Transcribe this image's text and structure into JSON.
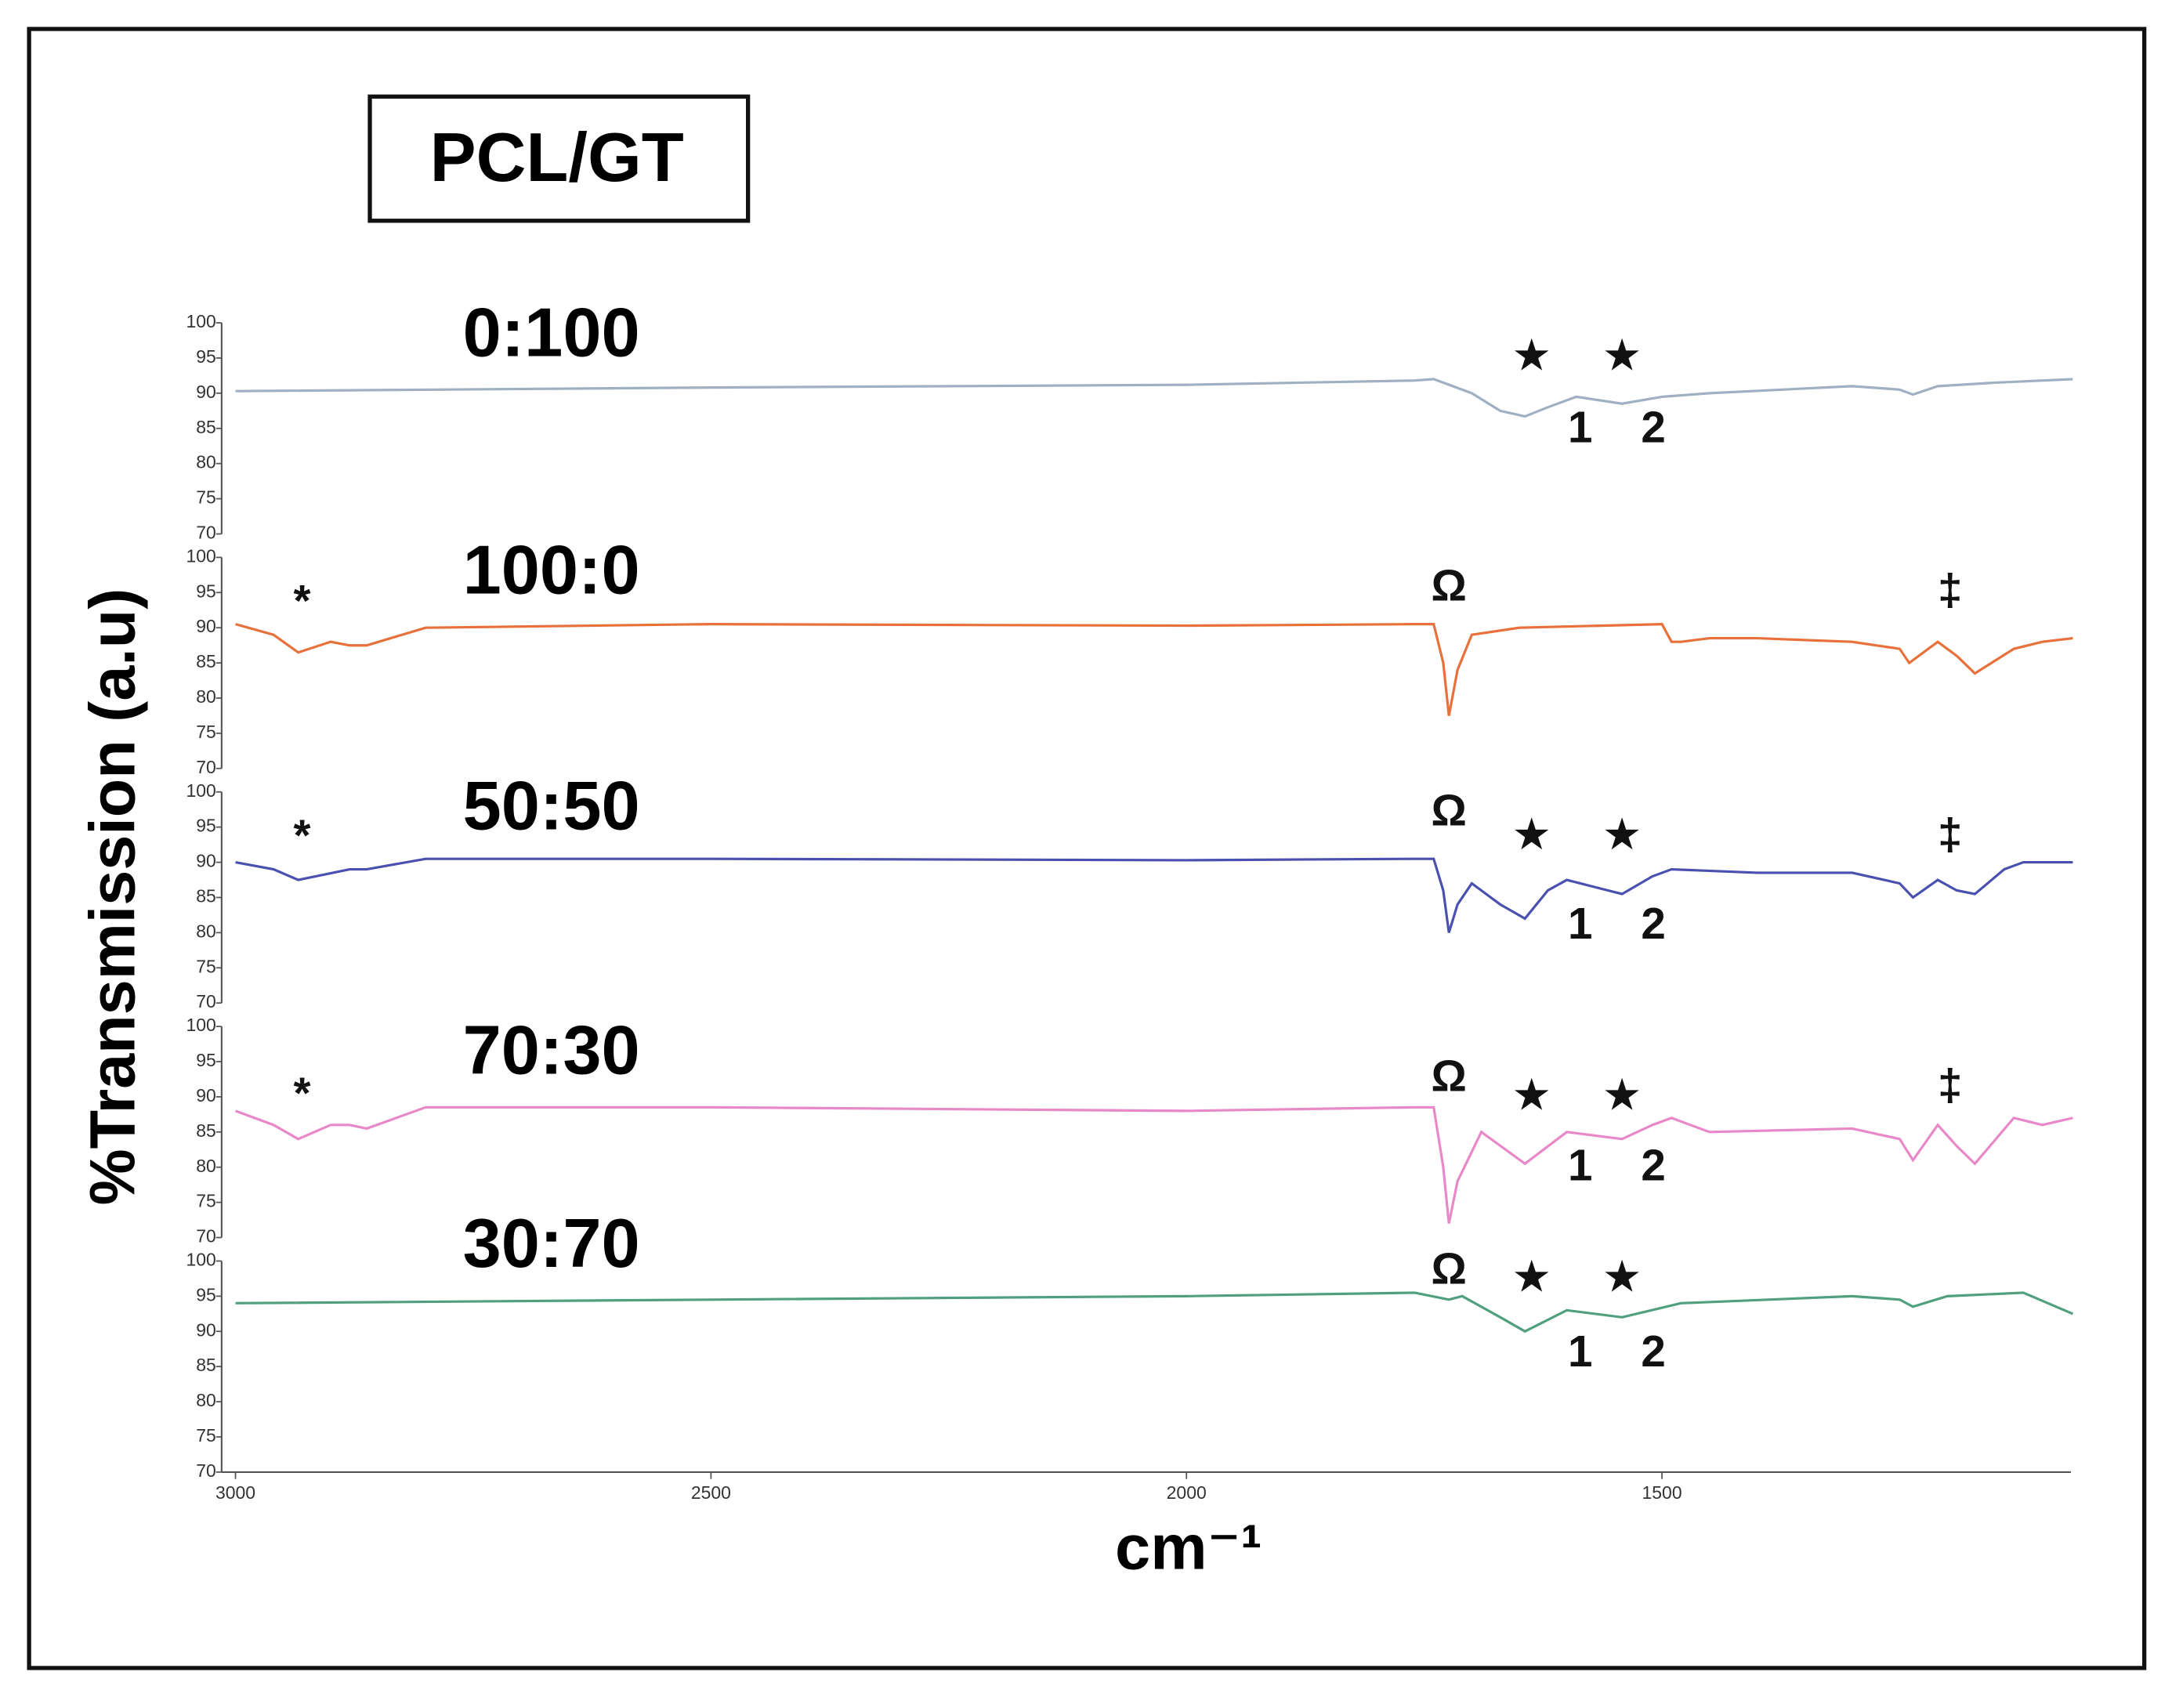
{
  "figure": {
    "title": "PCL/GT",
    "ylabel": "%Transmission (a.u)",
    "xlabel": "cm⁻¹"
  },
  "chart_data": [
    {
      "type": "line",
      "title": "0:100",
      "color": "#9fb0c2",
      "x": [
        3000,
        2500,
        2000,
        1760,
        1740,
        1700,
        1670,
        1644,
        1620,
        1590,
        1542,
        1500,
        1450,
        1300,
        1250,
        1236,
        1210,
        1150,
        1068
      ],
      "values": [
        90.3,
        90.8,
        91.2,
        91.8,
        92,
        90,
        87.5,
        86.7,
        88,
        89.5,
        88.5,
        89.5,
        90,
        91,
        90.5,
        89.8,
        91,
        91.5,
        92
      ],
      "xlim": [
        3000,
        1070
      ],
      "ylim": [
        70,
        100
      ],
      "yticks": [
        70,
        75,
        80,
        85,
        90,
        95,
        100
      ],
      "annotations": [
        {
          "text": "★",
          "x": 1637,
          "y": 94.9
        },
        {
          "text": "★",
          "x": 1542,
          "y": 94.9
        },
        {
          "text": "1",
          "x": 1586,
          "y": 84.7
        },
        {
          "text": "2",
          "x": 1509,
          "y": 84.7
        }
      ]
    },
    {
      "type": "line",
      "title": "100:0",
      "color": "#e8703a",
      "x": [
        3000,
        2960,
        2934,
        2900,
        2880,
        2862,
        2800,
        2500,
        2000,
        1760,
        1740,
        1730,
        1724,
        1715,
        1700,
        1650,
        1500,
        1490,
        1480,
        1450,
        1400,
        1300,
        1250,
        1240,
        1210,
        1190,
        1171,
        1130,
        1100,
        1068
      ],
      "values": [
        90.5,
        89,
        86.5,
        88,
        87.5,
        87.5,
        90,
        90.5,
        90.3,
        90.5,
        90.5,
        85,
        77.5,
        84,
        89,
        90,
        90.5,
        88,
        88,
        88.5,
        88.5,
        88,
        87,
        85,
        88,
        86,
        83.5,
        87,
        88,
        88.5
      ],
      "xlim": [
        3000,
        1070
      ],
      "ylim": [
        70,
        100
      ],
      "yticks": [
        70,
        75,
        80,
        85,
        90,
        95,
        100
      ],
      "annotations": [
        {
          "text": "*",
          "x": 2930,
          "y": 94.9
        },
        {
          "text": "Ω",
          "x": 1724,
          "y": 95.5
        },
        {
          "text": "‡",
          "x": 1197,
          "y": 94.9
        }
      ]
    },
    {
      "type": "line",
      "title": "50:50",
      "color": "#4a50b0",
      "x": [
        3000,
        2960,
        2934,
        2880,
        2862,
        2800,
        2500,
        2000,
        1760,
        1740,
        1730,
        1724,
        1715,
        1700,
        1670,
        1644,
        1620,
        1600,
        1542,
        1510,
        1490,
        1400,
        1300,
        1250,
        1236,
        1210,
        1190,
        1171,
        1140,
        1120,
        1068
      ],
      "values": [
        90,
        89,
        87.5,
        89,
        89,
        90.5,
        90.5,
        90.3,
        90.5,
        90.5,
        86,
        80,
        84,
        87,
        84,
        82,
        86,
        87.5,
        85.5,
        88,
        89,
        88.5,
        88.5,
        87,
        85,
        87.5,
        86,
        85.5,
        89,
        90,
        90
      ],
      "xlim": [
        3000,
        1070
      ],
      "ylim": [
        70,
        100
      ],
      "yticks": [
        70,
        75,
        80,
        85,
        90,
        95,
        100
      ],
      "annotations": [
        {
          "text": "*",
          "x": 2930,
          "y": 94.9
        },
        {
          "text": "Ω",
          "x": 1724,
          "y": 96.9
        },
        {
          "text": "★",
          "x": 1637,
          "y": 93.5
        },
        {
          "text": "★",
          "x": 1542,
          "y": 93.5
        },
        {
          "text": "‡",
          "x": 1197,
          "y": 93.5
        },
        {
          "text": "1",
          "x": 1586,
          "y": 80.8
        },
        {
          "text": "2",
          "x": 1509,
          "y": 80.8
        }
      ]
    },
    {
      "type": "line",
      "title": "70:30",
      "color": "#e888c8",
      "x": [
        3000,
        2960,
        2934,
        2900,
        2880,
        2862,
        2800,
        2500,
        2000,
        1760,
        1740,
        1730,
        1724,
        1715,
        1690,
        1644,
        1600,
        1542,
        1510,
        1490,
        1450,
        1300,
        1250,
        1236,
        1210,
        1190,
        1171,
        1130,
        1100,
        1068
      ],
      "values": [
        88,
        86,
        84,
        86,
        86,
        85.5,
        88.5,
        88.5,
        88,
        88.5,
        88.5,
        80,
        72,
        78,
        85,
        80.5,
        85,
        84,
        86,
        87,
        85,
        85.5,
        84,
        81,
        86,
        83,
        80.5,
        87,
        86,
        87
      ],
      "xlim": [
        3000,
        1070
      ],
      "ylim": [
        70,
        100
      ],
      "yticks": [
        70,
        75,
        80,
        85,
        90,
        95,
        100
      ],
      "annotations": [
        {
          "text": "*",
          "x": 2930,
          "y": 91.6
        },
        {
          "text": "Ω",
          "x": 1724,
          "y": 92.5
        },
        {
          "text": "★",
          "x": 1637,
          "y": 89.8
        },
        {
          "text": "★",
          "x": 1542,
          "y": 89.8
        },
        {
          "text": "‡",
          "x": 1197,
          "y": 91.2
        },
        {
          "text": "1",
          "x": 1586,
          "y": 79.8
        },
        {
          "text": "2",
          "x": 1509,
          "y": 79.8
        }
      ]
    },
    {
      "type": "line",
      "title": "30:70",
      "color": "#50a080",
      "x": [
        3000,
        2500,
        2000,
        1760,
        1724,
        1710,
        1670,
        1644,
        1600,
        1542,
        1480,
        1300,
        1250,
        1236,
        1200,
        1120,
        1068
      ],
      "values": [
        94,
        94.5,
        95,
        95.5,
        94.5,
        95,
        92,
        90,
        93,
        92,
        94,
        95,
        94.5,
        93.5,
        95,
        95.5,
        92.5
      ],
      "xlim": [
        3000,
        1070
      ],
      "ylim": [
        70,
        100
      ],
      "yticks": [
        70,
        75,
        80,
        85,
        90,
        95,
        100
      ],
      "xticks": [
        3000,
        2500,
        2000,
        1500
      ],
      "annotations": [
        {
          "text": "Ω",
          "x": 1724,
          "y": 98.4
        },
        {
          "text": "★",
          "x": 1637,
          "y": 97.3
        },
        {
          "text": "★",
          "x": 1542,
          "y": 97.3
        },
        {
          "text": "1",
          "x": 1586,
          "y": 86.7
        },
        {
          "text": "2",
          "x": 1509,
          "y": 86.7
        }
      ]
    }
  ]
}
